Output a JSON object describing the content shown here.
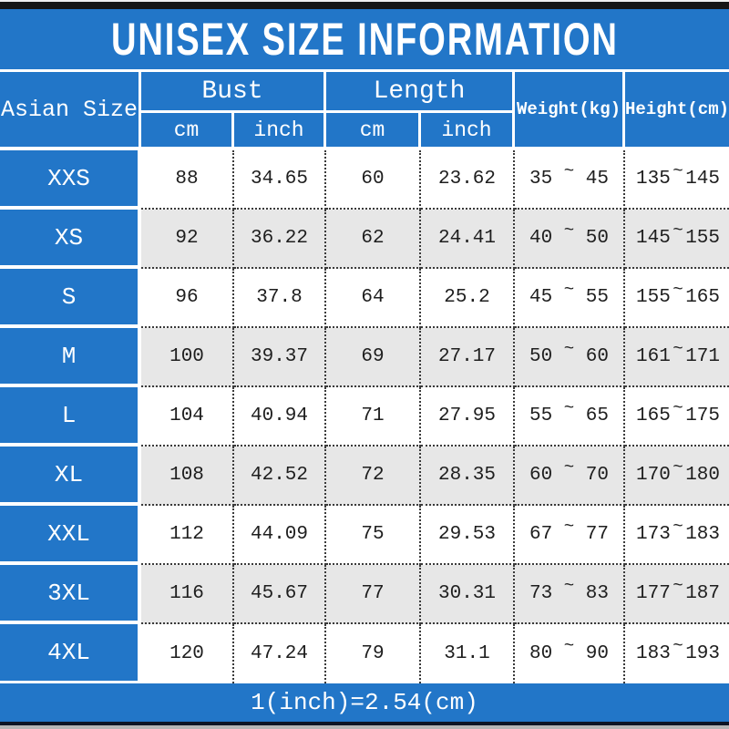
{
  "title": "UNISEX SIZE INFORMATION",
  "footer_note": "1(inch)=2.54(cm)",
  "colors": {
    "header_blue": "#2276c8",
    "alt_row_gray": "#e7e7e7",
    "top_bar_black": "#161616",
    "bottom_bar_navy": "#0d1424",
    "bottom_strip_gray": "#b5b5b5"
  },
  "table": {
    "size_column_header": "Asian Size",
    "bust_group_label": "Bust",
    "length_group_label": "Length",
    "unit_cm": "cm",
    "unit_inch": "inch",
    "weight_header": "Weight(kg)",
    "height_header": "Height(cm)",
    "tilde": "~",
    "rows": [
      {
        "size": "XXS",
        "bust_cm": "88",
        "bust_inch": "34.65",
        "length_cm": "60",
        "length_inch": "23.62",
        "weight_min": "35",
        "weight_max": "45",
        "height_min": "135",
        "height_max": "145"
      },
      {
        "size": "XS",
        "bust_cm": "92",
        "bust_inch": "36.22",
        "length_cm": "62",
        "length_inch": "24.41",
        "weight_min": "40",
        "weight_max": "50",
        "height_min": "145",
        "height_max": "155"
      },
      {
        "size": "S",
        "bust_cm": "96",
        "bust_inch": "37.8",
        "length_cm": "64",
        "length_inch": "25.2",
        "weight_min": "45",
        "weight_max": "55",
        "height_min": "155",
        "height_max": "165"
      },
      {
        "size": "M",
        "bust_cm": "100",
        "bust_inch": "39.37",
        "length_cm": "69",
        "length_inch": "27.17",
        "weight_min": "50",
        "weight_max": "60",
        "height_min": "161",
        "height_max": "171"
      },
      {
        "size": "L",
        "bust_cm": "104",
        "bust_inch": "40.94",
        "length_cm": "71",
        "length_inch": "27.95",
        "weight_min": "55",
        "weight_max": "65",
        "height_min": "165",
        "height_max": "175"
      },
      {
        "size": "XL",
        "bust_cm": "108",
        "bust_inch": "42.52",
        "length_cm": "72",
        "length_inch": "28.35",
        "weight_min": "60",
        "weight_max": "70",
        "height_min": "170",
        "height_max": "180"
      },
      {
        "size": "XXL",
        "bust_cm": "112",
        "bust_inch": "44.09",
        "length_cm": "75",
        "length_inch": "29.53",
        "weight_min": "67",
        "weight_max": "77",
        "height_min": "173",
        "height_max": "183"
      },
      {
        "size": "3XL",
        "bust_cm": "116",
        "bust_inch": "45.67",
        "length_cm": "77",
        "length_inch": "30.31",
        "weight_min": "73",
        "weight_max": "83",
        "height_min": "177",
        "height_max": "187"
      },
      {
        "size": "4XL",
        "bust_cm": "120",
        "bust_inch": "47.24",
        "length_cm": "79",
        "length_inch": "31.1",
        "weight_min": "80",
        "weight_max": "90",
        "height_min": "183",
        "height_max": "193"
      }
    ]
  }
}
